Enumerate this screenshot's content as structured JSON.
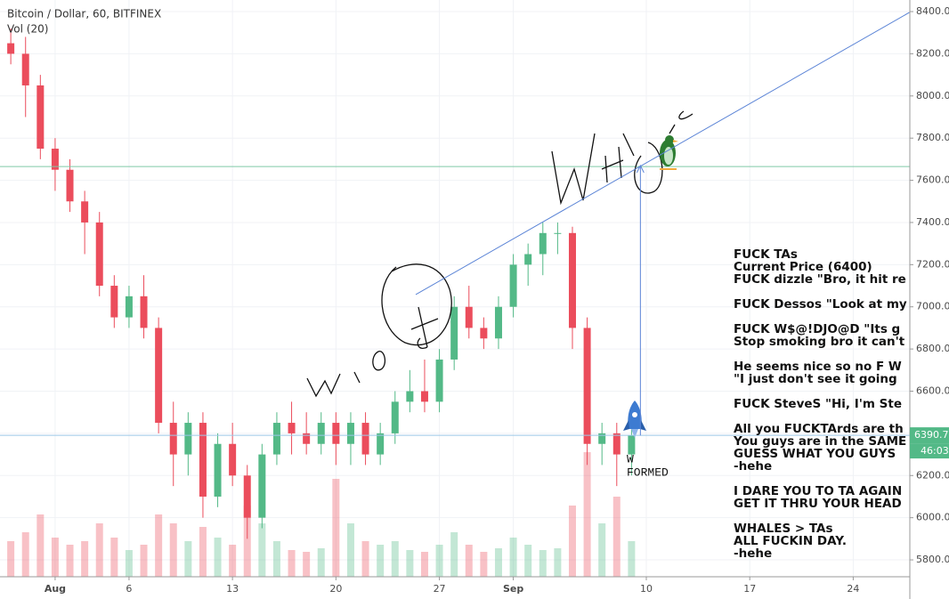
{
  "chart_data": {
    "type": "candlestick",
    "title": "Bitcoin / Dollar, 60, BITFINEX",
    "subtitle": "Vol (20)",
    "x": [
      -3,
      -2,
      -1,
      0,
      1,
      2,
      3,
      4,
      5,
      6,
      7,
      8,
      9,
      10,
      11,
      12,
      13,
      14,
      15,
      16,
      17,
      18,
      19,
      20,
      21,
      22,
      23,
      24,
      25,
      26,
      27,
      28,
      29,
      30,
      31,
      32,
      33,
      34,
      35,
      36,
      37,
      38,
      39
    ],
    "open": [
      8250,
      8200,
      8050,
      7750,
      7650,
      7500,
      7400,
      7100,
      6950,
      7050,
      6900,
      6450,
      6300,
      6450,
      6100,
      6350,
      6200,
      6000,
      6300,
      6450,
      6400,
      6350,
      6450,
      6350,
      6450,
      6300,
      6400,
      6550,
      6600,
      6550,
      6750,
      7000,
      6900,
      6850,
      7000,
      7200,
      7250,
      7350,
      7350,
      6900,
      6350,
      6400,
      6300
    ],
    "high": [
      8320,
      8280,
      8100,
      7800,
      7700,
      7550,
      7450,
      7150,
      7100,
      7150,
      6950,
      6550,
      6500,
      6500,
      6400,
      6450,
      6250,
      6350,
      6500,
      6550,
      6500,
      6500,
      6500,
      6500,
      6500,
      6450,
      6600,
      6700,
      6750,
      6800,
      7050,
      7100,
      6950,
      7050,
      7250,
      7300,
      7400,
      7400,
      7380,
      6950,
      6450,
      6450,
      6420
    ],
    "low": [
      8150,
      7900,
      7700,
      7550,
      7450,
      7250,
      7050,
      6900,
      6900,
      6850,
      6400,
      6150,
      6200,
      6000,
      6050,
      6150,
      5900,
      5950,
      6250,
      6300,
      6300,
      6300,
      6250,
      6250,
      6250,
      6250,
      6350,
      6500,
      6500,
      6500,
      6700,
      6850,
      6800,
      6800,
      6950,
      7100,
      7150,
      7250,
      6800,
      6250,
      6250,
      6150,
      6200
    ],
    "close": [
      8200,
      8050,
      7750,
      7650,
      7500,
      7400,
      7100,
      6950,
      7050,
      6900,
      6450,
      6300,
      6450,
      6100,
      6350,
      6200,
      6000,
      6300,
      6450,
      6400,
      6350,
      6450,
      6350,
      6450,
      6300,
      6400,
      6550,
      6600,
      6550,
      6750,
      7000,
      6900,
      6850,
      7000,
      7200,
      7250,
      7350,
      7350,
      6900,
      6350,
      6400,
      6300,
      6390.7
    ],
    "volume": [
      20,
      25,
      35,
      22,
      18,
      20,
      30,
      22,
      15,
      18,
      35,
      30,
      20,
      28,
      22,
      18,
      40,
      30,
      20,
      15,
      14,
      16,
      55,
      30,
      20,
      18,
      20,
      15,
      14,
      18,
      25,
      18,
      14,
      16,
      22,
      18,
      15,
      16,
      40,
      70,
      30,
      45,
      20
    ],
    "up_color": "#53b987",
    "down_color": "#eb4d5c",
    "xlim": [
      -3.73,
      57.83
    ],
    "xticks": [
      {
        "value": 0,
        "label": "Aug"
      },
      {
        "value": 5,
        "label": "6"
      },
      {
        "value": 12,
        "label": "13"
      },
      {
        "value": 19,
        "label": "20"
      },
      {
        "value": 26,
        "label": "27"
      },
      {
        "value": 31,
        "label": "Sep"
      },
      {
        "value": 40,
        "label": "10"
      },
      {
        "value": 47,
        "label": "17"
      },
      {
        "value": 54,
        "label": "24"
      }
    ],
    "ylim": [
      5720,
      8455
    ],
    "yticks": [
      {
        "value": 5800,
        "label": "5800.0"
      },
      {
        "value": 6000,
        "label": "6000.0"
      },
      {
        "value": 6200,
        "label": "6200.0"
      },
      {
        "value": 6400,
        "label": "6400.0"
      },
      {
        "value": 6600,
        "label": "6600.0"
      },
      {
        "value": 6800,
        "label": "6800.0"
      },
      {
        "value": 7000,
        "label": "7000.0"
      },
      {
        "value": 7200,
        "label": "7200.0"
      },
      {
        "value": 7400,
        "label": "7400.0"
      },
      {
        "value": 7600,
        "label": "7600.0"
      },
      {
        "value": 7800,
        "label": "7800.0"
      },
      {
        "value": 8000,
        "label": "8000.0"
      },
      {
        "value": 8200,
        "label": "8200.0"
      },
      {
        "value": 8400,
        "label": "8400.0"
      }
    ],
    "grid": true,
    "last_price": 6390.7,
    "countdown": "46:03",
    "horizontal_line": 7665,
    "trend_line": {
      "x": [
        24.4,
        57.8
      ],
      "y": [
        7058,
        8396
      ]
    },
    "arrow": {
      "x": [
        39.6,
        39.6
      ],
      "y": [
        6390,
        7670
      ]
    },
    "note": [
      "W",
      "FORMED"
    ],
    "comment_groups": [
      [
        "FUCK TAs",
        "Current Price (6400)",
        "FUCK dizzle \"Bro, it hit re"
      ],
      [
        "FUCK Dessos \"Look at my"
      ],
      [
        "FUCK W$@!DJO@D \"Its g",
        "Stop smoking bro it can't"
      ],
      [
        "He seems nice so no F W",
        "\"I just don't see it going"
      ],
      [
        "FUCK SteveS \"Hi, I'm Ste"
      ],
      [
        "All you FUCKTArds are th",
        "You guys are in the SAME",
        "GUESS WHAT YOU GUYS",
        "-hehe"
      ],
      [
        "I DARE YOU TO TA AGAIN",
        "GET IT THRU YOUR HEAD"
      ],
      [
        "WHALES > TAs",
        "ALL FUCKIN DAY.",
        "-hehe"
      ]
    ]
  }
}
